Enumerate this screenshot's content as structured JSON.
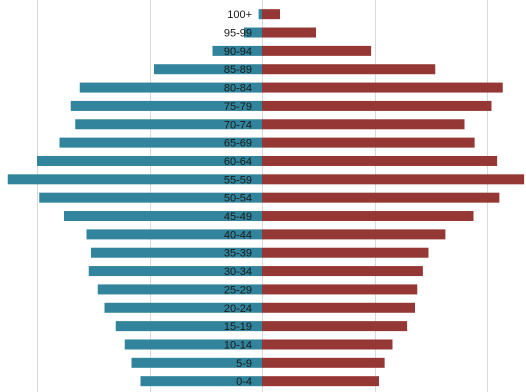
{
  "chart_data": {
    "type": "bar",
    "orientation": "horizontal",
    "layout": "population-pyramid",
    "categories": [
      "100+",
      "95-99",
      "90-94",
      "85-89",
      "80-84",
      "75-79",
      "70-74",
      "65-69",
      "60-64",
      "55-59",
      "50-54",
      "45-49",
      "40-44",
      "35-39",
      "30-34",
      "25-29",
      "20-24",
      "15-19",
      "10-14",
      "5-9",
      "0-4"
    ],
    "series": [
      {
        "side": "left",
        "color": "#31849b",
        "values": [
          0.3,
          1.6,
          4.4,
          9.6,
          16.2,
          17.0,
          16.6,
          18.0,
          20.0,
          22.6,
          19.8,
          17.6,
          15.6,
          15.2,
          15.4,
          14.6,
          14.0,
          13.0,
          12.2,
          11.6,
          10.8
        ]
      },
      {
        "side": "right",
        "color": "#953735",
        "values": [
          1.6,
          4.8,
          9.7,
          15.4,
          21.4,
          20.4,
          18.0,
          18.9,
          20.9,
          23.3,
          21.1,
          18.8,
          16.3,
          14.8,
          14.3,
          13.8,
          13.6,
          12.9,
          11.6,
          10.9,
          10.4
        ]
      }
    ],
    "xlim": [
      -23.3,
      23.3
    ],
    "grid": true,
    "gridline_values": [
      -20,
      -10,
      0,
      10,
      20
    ],
    "legend": "none"
  }
}
